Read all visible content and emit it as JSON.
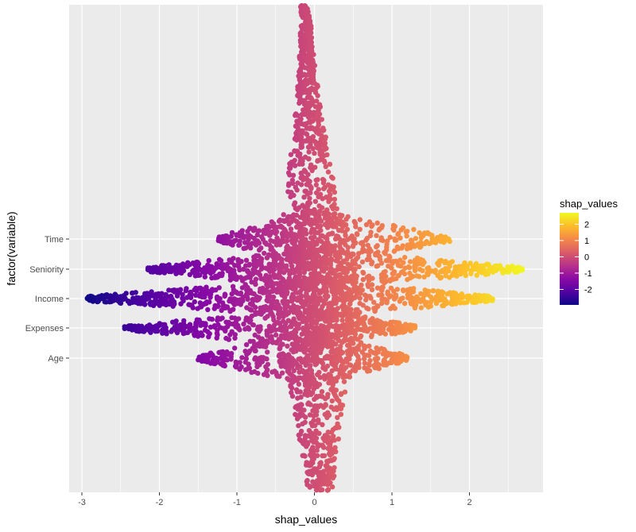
{
  "chart_data": {
    "type": "scatter",
    "subtype": "shap beeswarm (jittered points colored by value)",
    "xlabel": "shap_values",
    "ylabel": "factor(variable)",
    "xlim": [
      -3.05,
      3.0
    ],
    "x_ticks": [
      "-3",
      "-2",
      "-1",
      "0",
      "1",
      "2"
    ],
    "x_tick_values": [
      -3,
      -2,
      -1,
      0,
      1,
      2
    ],
    "categories": [
      "Age",
      "Expenses",
      "Income",
      "Seniority",
      "Time"
    ],
    "y_tick_labels": [
      "Time",
      "Seniority",
      "Income",
      "Expenses",
      "Age"
    ],
    "category_ranges": [
      {
        "name": "Age",
        "min": -1.5,
        "max": 1.2
      },
      {
        "name": "Expenses",
        "min": -2.45,
        "max": 1.3
      },
      {
        "name": "Income",
        "min": -2.95,
        "max": 2.3
      },
      {
        "name": "Seniority",
        "min": -2.15,
        "max": 2.7
      },
      {
        "name": "Time",
        "min": -1.25,
        "max": 1.75
      }
    ],
    "color_legend": {
      "title": "shap_values",
      "ticks": [
        "2",
        "1",
        "0",
        "-1",
        "-2"
      ],
      "tick_values": [
        2,
        1,
        0,
        -1,
        -2
      ],
      "range": [
        -2.95,
        2.7
      ],
      "palette": "plasma",
      "colors": [
        "#0d0887",
        "#5302a3",
        "#8b0aa5",
        "#b83289",
        "#db5c68",
        "#f48849",
        "#febc2a",
        "#f0f921"
      ]
    },
    "grid": true,
    "panel_background": "#ebebeb",
    "legend_position": "right"
  }
}
